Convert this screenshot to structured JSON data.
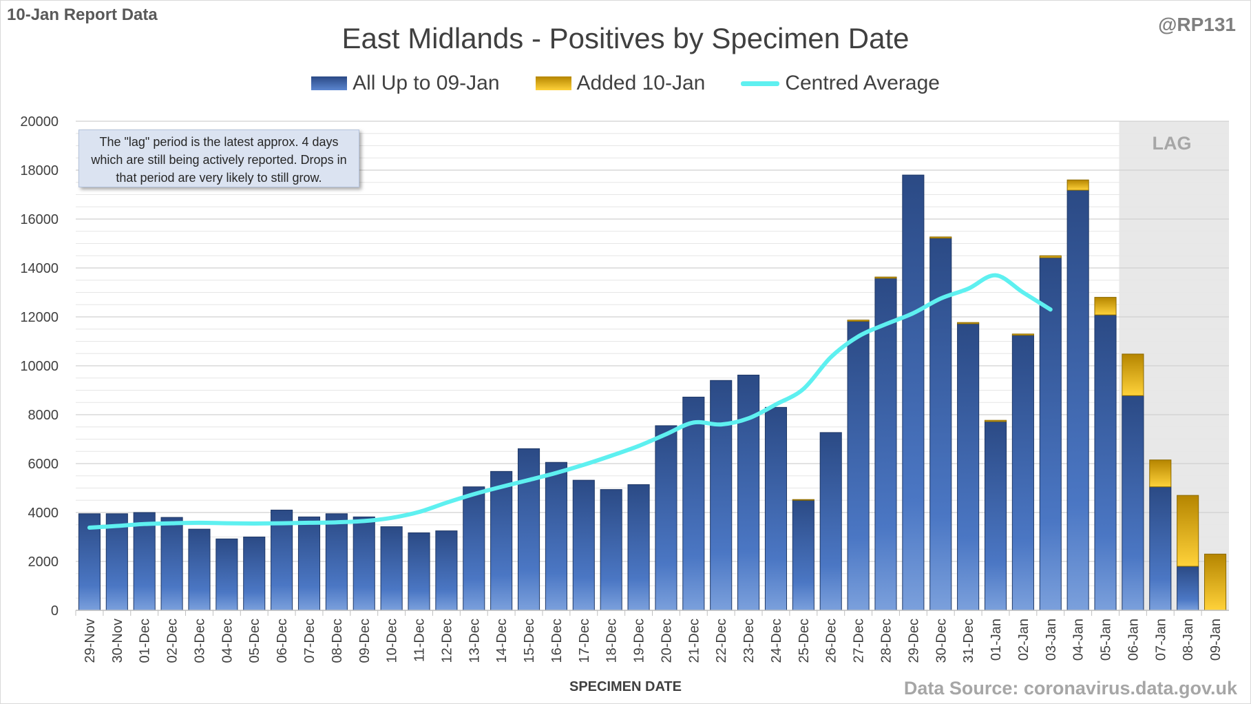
{
  "header": {
    "report_tag": "10-Jan Report Data",
    "handle": "@RP131",
    "source": "Data Source: coronavirus.data.gov.uk"
  },
  "note": {
    "text": "The \"lag\" period is the latest approx. 4 days which are still being actively reported.  Drops in that period are very likely to still grow."
  },
  "lag_label": "LAG",
  "colors": {
    "base_dark": "#2b4a85",
    "base_light": "#6b93d6",
    "added_dark": "#b58500",
    "added_light": "#ffd23a",
    "average": "#5ef0f0",
    "lag_shade": "#e8e8e8"
  },
  "chart_data": {
    "type": "bar",
    "title": "East Midlands - Positives by Specimen Date",
    "xlabel": "SPECIMEN DATE",
    "ylabel": "",
    "ylim": [
      0,
      20000
    ],
    "yticks": [
      0,
      2000,
      4000,
      6000,
      8000,
      10000,
      12000,
      14000,
      16000,
      18000,
      20000
    ],
    "grid": true,
    "stacked": true,
    "legend_position": "top",
    "lag_start": "06-Jan",
    "categories": [
      "29-Nov",
      "30-Nov",
      "01-Dec",
      "02-Dec",
      "03-Dec",
      "04-Dec",
      "05-Dec",
      "06-Dec",
      "07-Dec",
      "08-Dec",
      "09-Dec",
      "10-Dec",
      "11-Dec",
      "12-Dec",
      "13-Dec",
      "14-Dec",
      "15-Dec",
      "16-Dec",
      "17-Dec",
      "18-Dec",
      "19-Dec",
      "20-Dec",
      "21-Dec",
      "22-Dec",
      "23-Dec",
      "24-Dec",
      "25-Dec",
      "26-Dec",
      "27-Dec",
      "28-Dec",
      "29-Dec",
      "30-Dec",
      "31-Dec",
      "01-Jan",
      "02-Jan",
      "03-Jan",
      "04-Jan",
      "05-Jan",
      "06-Jan",
      "07-Jan",
      "08-Jan",
      "09-Jan"
    ],
    "series": [
      {
        "name": "All Up to 09-Jan",
        "values": [
          3950,
          3950,
          4000,
          3800,
          3320,
          2920,
          3000,
          4100,
          3820,
          3950,
          3820,
          3420,
          3170,
          3250,
          5050,
          5680,
          6610,
          6050,
          5320,
          4940,
          5140,
          7550,
          8720,
          9400,
          9620,
          8300,
          4500,
          7270,
          11820,
          13580,
          17800,
          15220,
          11720,
          7720,
          11250,
          14420,
          17180,
          12080,
          8780,
          5050,
          1800,
          0
        ]
      },
      {
        "name": "Added 10-Jan",
        "values": [
          0,
          0,
          0,
          0,
          0,
          0,
          0,
          0,
          0,
          0,
          0,
          0,
          0,
          0,
          0,
          0,
          0,
          0,
          0,
          0,
          0,
          0,
          0,
          0,
          0,
          0,
          30,
          0,
          50,
          50,
          0,
          50,
          50,
          50,
          50,
          80,
          420,
          720,
          1700,
          1100,
          2900,
          2300
        ]
      },
      {
        "name": "Centred Average",
        "type": "line",
        "values": [
          3380,
          3450,
          3530,
          3560,
          3580,
          3560,
          3550,
          3560,
          3580,
          3600,
          3650,
          3780,
          4020,
          4400,
          4750,
          5050,
          5330,
          5620,
          5950,
          6320,
          6720,
          7200,
          7680,
          7600,
          7850,
          8420,
          9050,
          10350,
          11200,
          11700,
          12150,
          12750,
          13150,
          13700,
          13000,
          12300,
          null,
          null,
          null,
          null,
          null,
          null
        ]
      }
    ]
  }
}
